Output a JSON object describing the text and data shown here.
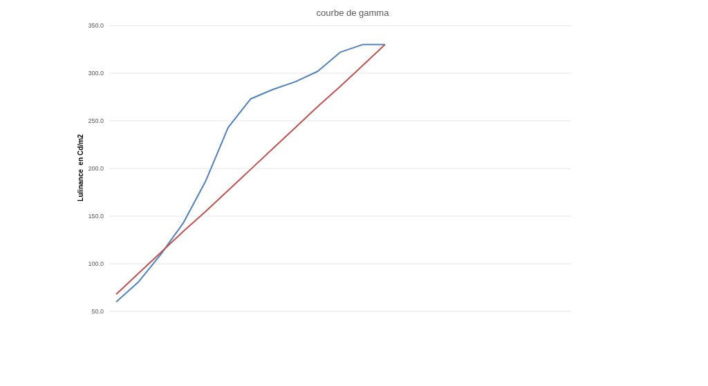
{
  "chart_data": {
    "type": "line",
    "title": "courbe de gamma",
    "ylabel": "Lulinance  en Cd/m2",
    "categories": [
      null,
      null,
      null,
      null,
      null,
      null,
      null,
      null,
      null,
      null,
      null,
      null,
      null,
      null,
      null,
      null,
      null,
      null,
      null,
      null,
      null
    ],
    "series": [
      {
        "color": "#4f81bd",
        "values": [
          60,
          81,
          110,
          143,
          187,
          243,
          273,
          283,
          291,
          302,
          322,
          330,
          330,
          null,
          null,
          null,
          null,
          null,
          null,
          null,
          null
        ]
      },
      {
        "color": "#c0504d",
        "values": [
          68,
          90,
          112,
          134,
          155,
          177,
          199,
          221,
          243,
          265,
          286,
          308,
          330,
          null,
          null,
          null,
          null,
          null,
          null,
          null,
          null
        ]
      }
    ],
    "ylim": [
      50,
      350
    ],
    "yticks": [
      {
        "value": 50,
        "label": "50.0"
      },
      {
        "value": 100,
        "label": "100.0"
      },
      {
        "value": 150,
        "label": "150.0"
      },
      {
        "value": 200,
        "label": "200.0"
      },
      {
        "value": 250,
        "label": "250.0"
      },
      {
        "value": 300,
        "label": "300.0"
      },
      {
        "value": 350,
        "label": "350.0"
      }
    ],
    "grid": "y",
    "tick_labels": "y",
    "marker": "none",
    "line_style": "solid"
  }
}
